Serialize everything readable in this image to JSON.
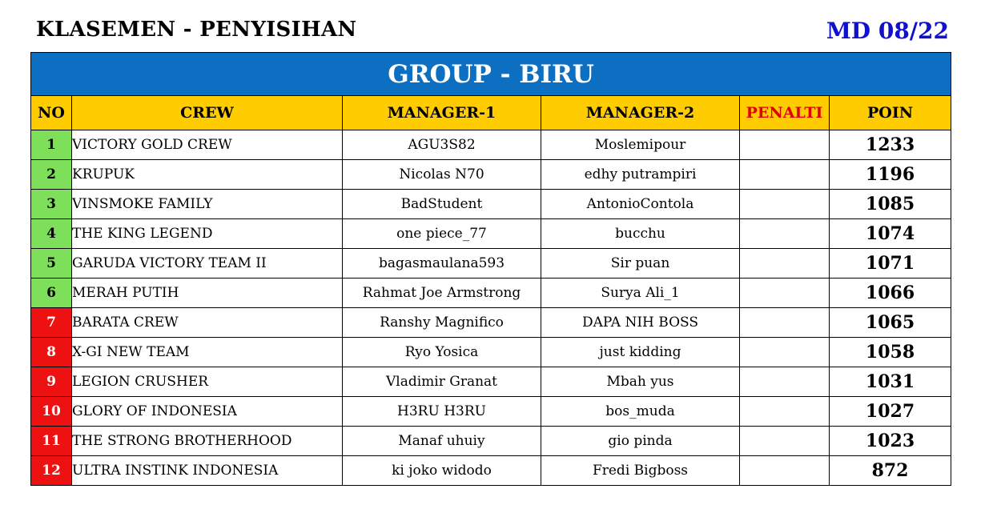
{
  "header": {
    "title": "KLASEMEN - PENYISIHAN",
    "matchday": "MD 08/22"
  },
  "table": {
    "group_label": "GROUP - BIRU",
    "columns": {
      "no": "NO",
      "crew": "CREW",
      "manager1": "MANAGER-1",
      "manager2": "MANAGER-2",
      "penalty": "PENALTI",
      "points": "POIN"
    },
    "rows": [
      {
        "no": "1",
        "crew": "VICTORY GOLD CREW",
        "manager1": "AGU3S82",
        "manager2": "Moslemipour",
        "penalty": "",
        "points": "1233",
        "status": "qualified"
      },
      {
        "no": "2",
        "crew": "KRUPUK",
        "manager1": "Nicolas N70",
        "manager2": "edhy putrampiri",
        "penalty": "",
        "points": "1196",
        "status": "qualified"
      },
      {
        "no": "3",
        "crew": "VINSMOKE FAMILY",
        "manager1": "BadStudent",
        "manager2": "AntonioContola",
        "penalty": "",
        "points": "1085",
        "status": "qualified"
      },
      {
        "no": "4",
        "crew": "THE KING LEGEND",
        "manager1": "one piece_77",
        "manager2": "bucchu",
        "penalty": "",
        "points": "1074",
        "status": "qualified"
      },
      {
        "no": "5",
        "crew": "GARUDA VICTORY TEAM II",
        "manager1": "bagasmaulana593",
        "manager2": "Sir puan",
        "penalty": "",
        "points": "1071",
        "status": "qualified"
      },
      {
        "no": "6",
        "crew": "MERAH PUTIH",
        "manager1": "Rahmat Joe Armstrong",
        "manager2": "Surya Ali_1",
        "penalty": "",
        "points": "1066",
        "status": "qualified"
      },
      {
        "no": "7",
        "crew": "BARATA CREW",
        "manager1": "Ranshy Magnifico",
        "manager2": "DAPA NIH BOSS",
        "penalty": "",
        "points": "1065",
        "status": "eliminated"
      },
      {
        "no": "8",
        "crew": "X-GI NEW TEAM",
        "manager1": "Ryo Yosica",
        "manager2": "just kidding",
        "penalty": "",
        "points": "1058",
        "status": "eliminated"
      },
      {
        "no": "9",
        "crew": "LEGION CRUSHER",
        "manager1": "Vladimir Granat",
        "manager2": "Mbah yus",
        "penalty": "",
        "points": "1031",
        "status": "eliminated"
      },
      {
        "no": "10",
        "crew": "GLORY OF INDONESIA",
        "manager1": "H3RU H3RU",
        "manager2": "bos_muda",
        "penalty": "",
        "points": "1027",
        "status": "eliminated"
      },
      {
        "no": "11",
        "crew": "THE STRONG BROTHERHOOD",
        "manager1": "Manaf uhuiy",
        "manager2": "gio pinda",
        "penalty": "",
        "points": "1023",
        "status": "eliminated"
      },
      {
        "no": "12",
        "crew": "ULTRA INSTINK INDONESIA",
        "manager1": "ki joko widodo",
        "manager2": "Fredi Bigboss",
        "penalty": "",
        "points": "872",
        "status": "eliminated"
      }
    ]
  },
  "colors": {
    "group_header_bg": "#0c6fc2",
    "column_header_bg": "#ffcc00",
    "penalty_header_text": "#e00000",
    "matchday_text": "#1111cc",
    "qualified_bg": "#7ee05a",
    "eliminated_bg": "#ee1111"
  }
}
